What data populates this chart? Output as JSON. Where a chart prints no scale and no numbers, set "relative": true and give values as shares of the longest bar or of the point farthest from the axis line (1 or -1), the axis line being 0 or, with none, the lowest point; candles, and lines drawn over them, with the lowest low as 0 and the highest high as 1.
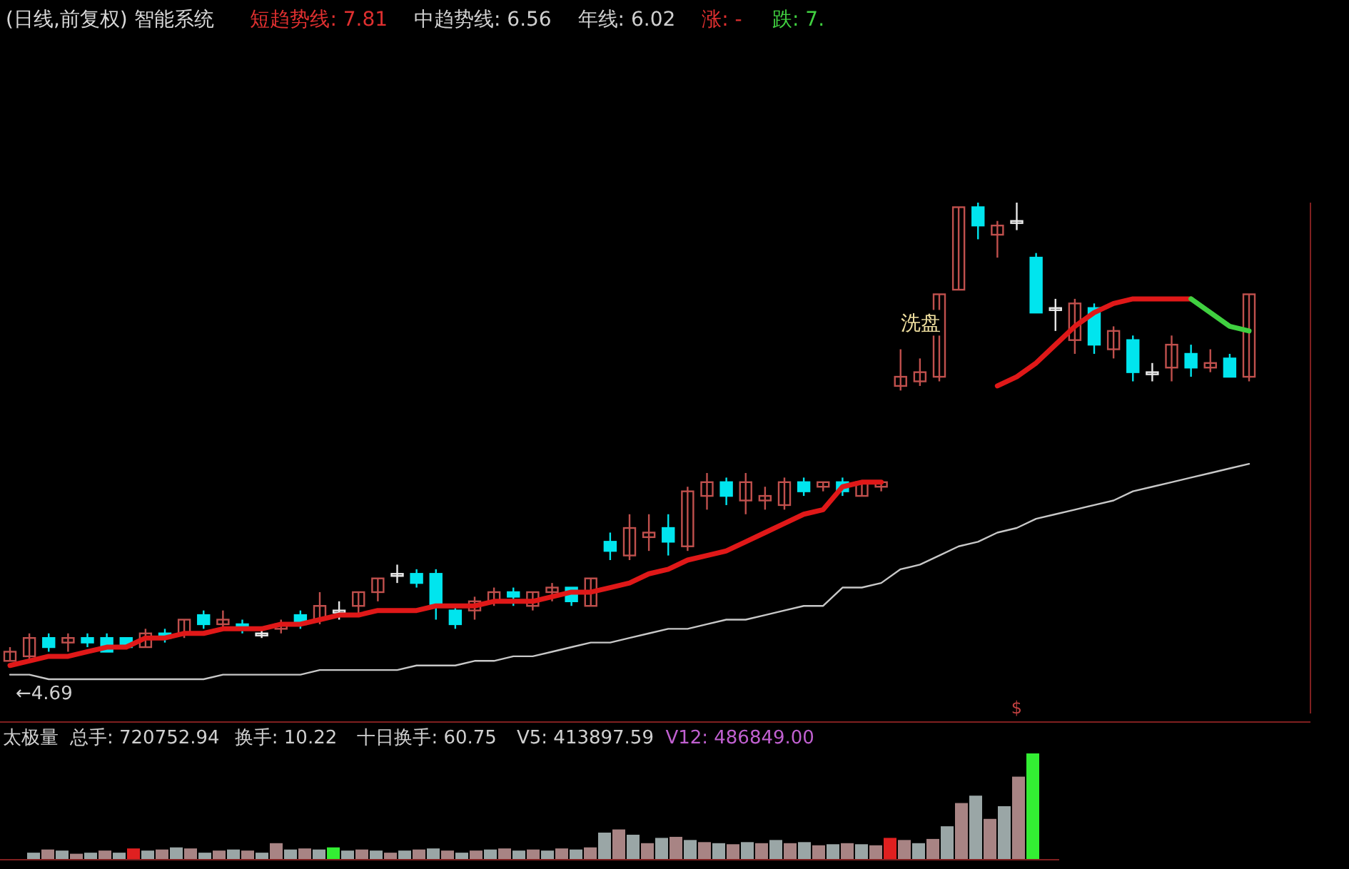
{
  "chart_data": [
    {
      "type": "candlestick",
      "title": "(日线,前复权) 智能系统",
      "relative": true,
      "annotations": [
        "短趋势线: 7.81",
        "中趋势线: 6.56",
        "年线: 6.02",
        "涨: -",
        "跌: 7.",
        "←4.69",
        "洗盘",
        "$"
      ],
      "categories": [
        null,
        null,
        null,
        null,
        null,
        null,
        null,
        null,
        null,
        null,
        null,
        null,
        null,
        null,
        null,
        null,
        null,
        null,
        null,
        null,
        null,
        null,
        null,
        null,
        null,
        null,
        null,
        null,
        null,
        null,
        null,
        null,
        null,
        null,
        null,
        null,
        null,
        null,
        null,
        null,
        null,
        null,
        null,
        null,
        null,
        null,
        null,
        null,
        null,
        null,
        null,
        null,
        null,
        null,
        null,
        null,
        null,
        null,
        null,
        null,
        null,
        null,
        null,
        null,
        null
      ],
      "ohlc": [
        [
          0,
          0.03,
          0,
          0.02
        ],
        [
          0.01,
          0.06,
          0,
          0.05
        ],
        [
          0.05,
          0.06,
          0.02,
          0.03
        ],
        [
          0.04,
          0.06,
          0.02,
          0.05
        ],
        [
          0.05,
          0.06,
          0.03,
          0.04
        ],
        [
          0.05,
          0.06,
          0.02,
          0.02
        ],
        [
          0.05,
          0.05,
          0.03,
          0.03
        ],
        [
          0.03,
          0.07,
          0.03,
          0.06
        ],
        [
          0.06,
          0.07,
          0.04,
          0.05
        ],
        [
          0.06,
          0.09,
          0.05,
          0.09
        ],
        [
          0.1,
          0.11,
          0.07,
          0.08
        ],
        [
          0.08,
          0.11,
          0.07,
          0.09
        ],
        [
          0.08,
          0.09,
          0.06,
          0.07
        ],
        [
          0.06,
          0.07,
          0.05,
          0.06
        ],
        [
          0.07,
          0.09,
          0.06,
          0.08
        ],
        [
          0.1,
          0.11,
          0.07,
          0.08
        ],
        [
          0.09,
          0.15,
          0.08,
          0.12
        ],
        [
          0.11,
          0.13,
          0.09,
          0.11
        ],
        [
          0.12,
          0.15,
          0.1,
          0.15
        ],
        [
          0.15,
          0.18,
          0.13,
          0.18
        ],
        [
          0.19,
          0.21,
          0.17,
          0.19
        ],
        [
          0.19,
          0.2,
          0.16,
          0.17
        ],
        [
          0.19,
          0.2,
          0.09,
          0.12
        ],
        [
          0.11,
          0.12,
          0.07,
          0.08
        ],
        [
          0.11,
          0.14,
          0.09,
          0.13
        ],
        [
          0.13,
          0.16,
          0.12,
          0.15
        ],
        [
          0.15,
          0.16,
          0.12,
          0.14
        ],
        [
          0.12,
          0.15,
          0.11,
          0.15
        ],
        [
          0.15,
          0.17,
          0.13,
          0.16
        ],
        [
          0.16,
          0.16,
          0.12,
          0.13
        ],
        [
          0.12,
          0.18,
          0.12,
          0.18
        ],
        [
          0.26,
          0.28,
          0.22,
          0.24
        ],
        [
          0.23,
          0.32,
          0.22,
          0.29
        ],
        [
          0.27,
          0.32,
          0.24,
          0.28
        ],
        [
          0.29,
          0.32,
          0.23,
          0.26
        ],
        [
          0.25,
          0.38,
          0.24,
          0.37
        ],
        [
          0.36,
          0.41,
          0.33,
          0.39
        ],
        [
          0.39,
          0.4,
          0.34,
          0.36
        ],
        [
          0.35,
          0.41,
          0.32,
          0.39
        ],
        [
          0.35,
          0.38,
          0.33,
          0.36
        ],
        [
          0.34,
          0.4,
          0.33,
          0.39
        ],
        [
          0.39,
          0.4,
          0.36,
          0.37
        ],
        [
          0.38,
          0.39,
          0.37,
          0.39
        ],
        [
          0.39,
          0.4,
          0.36,
          0.37
        ],
        [
          0.36,
          0.39,
          0.36,
          0.39
        ],
        [
          0.38,
          0.39,
          0.37,
          0.39
        ],
        [
          0.6,
          0.68,
          0.59,
          0.62
        ],
        [
          0.61,
          0.66,
          0.6,
          0.63
        ],
        [
          0.62,
          0.8,
          0.61,
          0.8
        ],
        [
          0.81,
          0.99,
          0.81,
          0.99
        ],
        [
          0.99,
          1,
          0.92,
          0.95
        ],
        [
          0.93,
          0.96,
          0.88,
          0.95
        ],
        [
          0.96,
          1,
          0.94,
          0.96
        ],
        [
          0.88,
          0.89,
          0.76,
          0.76
        ],
        [
          0.77,
          0.79,
          0.72,
          0.77
        ],
        [
          0.7,
          0.79,
          0.67,
          0.78
        ],
        [
          0.77,
          0.78,
          0.67,
          0.69
        ],
        [
          0.68,
          0.73,
          0.66,
          0.72
        ],
        [
          0.7,
          0.71,
          0.61,
          0.63
        ],
        [
          0.63,
          0.65,
          0.61,
          0.63
        ],
        [
          0.64,
          0.71,
          0.61,
          0.69
        ],
        [
          0.67,
          0.69,
          0.62,
          0.64
        ],
        [
          0.64,
          0.68,
          0.63,
          0.65
        ],
        [
          0.66,
          0.67,
          0.62,
          0.62
        ],
        [
          0.62,
          0.8,
          0.61,
          0.8
        ]
      ],
      "series": [
        {
          "type": "line",
          "color": "#e01818",
          "values": [
            -0.01,
            0,
            0.01,
            0.01,
            0.02,
            0.03,
            0.03,
            0.05,
            0.05,
            0.06,
            0.06,
            0.07,
            0.07,
            0.07,
            0.08,
            0.08,
            0.09,
            0.1,
            0.1,
            0.11,
            0.11,
            0.11,
            0.12,
            0.12,
            0.12,
            0.13,
            0.13,
            0.13,
            0.14,
            0.15,
            0.15,
            0.16,
            0.17,
            0.19,
            0.2,
            0.22,
            0.23,
            0.24,
            0.26,
            0.28,
            0.3,
            0.32,
            0.33,
            0.38,
            0.39,
            0.39,
            null,
            null,
            null,
            null,
            null,
            0.6,
            0.62,
            0.65,
            0.69,
            0.73,
            0.76,
            0.78,
            0.79,
            0.79,
            0.79,
            0.79,
            null,
            null,
            null
          ]
        },
        {
          "type": "line",
          "color": "#40d040",
          "values": [
            null,
            null,
            null,
            null,
            null,
            null,
            null,
            null,
            null,
            null,
            null,
            null,
            null,
            null,
            null,
            null,
            null,
            null,
            null,
            null,
            null,
            null,
            null,
            null,
            null,
            null,
            null,
            null,
            null,
            null,
            null,
            null,
            null,
            null,
            null,
            null,
            null,
            null,
            null,
            null,
            null,
            null,
            null,
            null,
            null,
            null,
            null,
            null,
            null,
            null,
            null,
            null,
            null,
            null,
            null,
            null,
            null,
            null,
            null,
            null,
            null,
            0.79,
            0.76,
            0.73,
            0.72
          ]
        },
        {
          "type": "line",
          "color": "#c8c8c8",
          "values": [
            -0.03,
            -0.03,
            -0.04,
            -0.04,
            -0.04,
            -0.04,
            -0.04,
            -0.04,
            -0.04,
            -0.04,
            -0.04,
            -0.03,
            -0.03,
            -0.03,
            -0.03,
            -0.03,
            -0.02,
            -0.02,
            -0.02,
            -0.02,
            -0.02,
            -0.01,
            -0.01,
            -0.01,
            0,
            0,
            0.01,
            0.01,
            0.02,
            0.03,
            0.04,
            0.04,
            0.05,
            0.06,
            0.07,
            0.07,
            0.08,
            0.09,
            0.09,
            0.1,
            0.11,
            0.12,
            0.12,
            0.16,
            0.16,
            0.17,
            0.2,
            0.21,
            0.23,
            0.25,
            0.26,
            0.28,
            0.29,
            0.31,
            0.32,
            0.33,
            0.34,
            0.35,
            0.37,
            0.38,
            0.39,
            0.4,
            0.41,
            0.42,
            0.43
          ]
        }
      ]
    },
    {
      "type": "bar",
      "relative": true,
      "annotations": [
        "太极量",
        "总手: 720752.94",
        "换手: 10.22",
        "十日换手: 60.75",
        "V5: 413897.59",
        "V12: 486849.00"
      ],
      "categories": [
        null,
        null,
        null,
        null,
        null,
        null,
        null,
        null,
        null,
        null,
        null,
        null,
        null,
        null,
        null,
        null,
        null,
        null,
        null,
        null,
        null,
        null,
        null,
        null,
        null,
        null,
        null,
        null,
        null,
        null,
        null,
        null,
        null,
        null,
        null,
        null,
        null,
        null,
        null,
        null,
        null,
        null,
        null,
        null,
        null,
        null,
        null,
        null,
        null,
        null,
        null,
        null,
        null,
        null,
        null,
        null,
        null,
        null,
        null,
        null,
        null,
        null,
        null,
        null,
        null,
        null,
        null,
        null,
        null,
        null,
        null
      ],
      "values": [
        0.06,
        0.09,
        0.08,
        0.05,
        0.06,
        0.08,
        0.06,
        0.1,
        0.08,
        0.09,
        0.11,
        0.1,
        0.06,
        0.08,
        0.09,
        0.08,
        0.06,
        0.15,
        0.09,
        0.1,
        0.09,
        0.11,
        0.08,
        0.09,
        0.08,
        0.06,
        0.08,
        0.09,
        0.1,
        0.08,
        0.06,
        0.08,
        0.09,
        0.1,
        0.08,
        0.09,
        0.08,
        0.1,
        0.09,
        0.11,
        0.25,
        0.28,
        0.23,
        0.15,
        0.2,
        0.21,
        0.18,
        0.16,
        0.15,
        0.14,
        0.16,
        0.15,
        0.18,
        0.15,
        0.16,
        0.13,
        0.14,
        0.15,
        0.14,
        0.13,
        0.2,
        0.18,
        0.15,
        0.19,
        0.31,
        0.53,
        0.6,
        0.38,
        0.5,
        0.78,
        1
      ],
      "colors": [
        "#9aa6a6",
        "#a88484",
        "#9aa6a6",
        "#a88484",
        "#9aa6a6",
        "#a88484",
        "#9aa6a6",
        "#e02020",
        "#9aa6a6",
        "#a88484",
        "#9aa6a6",
        "#a88484",
        "#9aa6a6",
        "#a88484",
        "#9aa6a6",
        "#a88484",
        "#9aa6a6",
        "#a88484",
        "#9aa6a6",
        "#a88484",
        "#9aa6a6",
        "#33ee33",
        "#9aa6a6",
        "#a88484",
        "#9aa6a6",
        "#a88484",
        "#9aa6a6",
        "#a88484",
        "#9aa6a6",
        "#a88484",
        "#9aa6a6",
        "#a88484",
        "#9aa6a6",
        "#a88484",
        "#9aa6a6",
        "#a88484",
        "#9aa6a6",
        "#a88484",
        "#9aa6a6",
        "#a88484",
        "#9aa6a6",
        "#a88484",
        "#9aa6a6",
        "#a88484",
        "#9aa6a6",
        "#a88484",
        "#9aa6a6",
        "#a88484",
        "#9aa6a6",
        "#a88484",
        "#9aa6a6",
        "#a88484",
        "#9aa6a6",
        "#a88484",
        "#9aa6a6",
        "#a88484",
        "#9aa6a6",
        "#a88484",
        "#9aa6a6",
        "#a88484",
        "#e02020",
        "#a88484",
        "#9aa6a6",
        "#a88484",
        "#9aa6a6",
        "#a88484",
        "#9aa6a6",
        "#a88484",
        "#9aa6a6",
        "#a88484",
        "#33ee33"
      ]
    }
  ]
}
